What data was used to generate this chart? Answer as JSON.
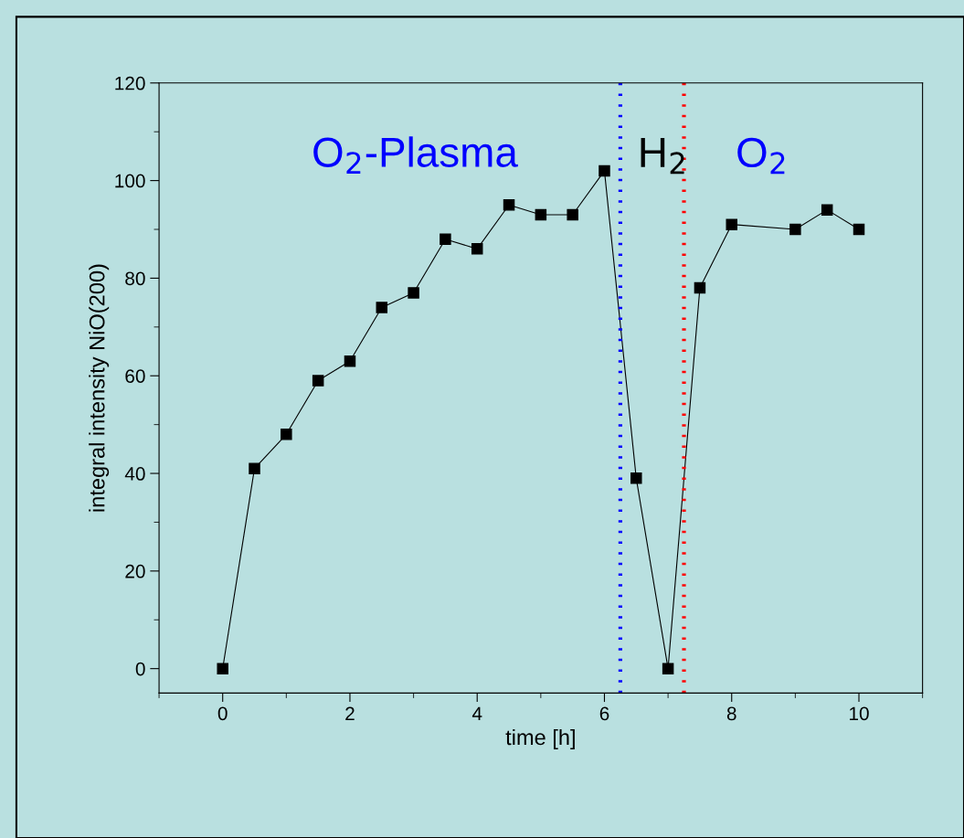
{
  "chart_data": {
    "type": "line",
    "xlabel": "time [h]",
    "ylabel": "integral intensity NiO(200)",
    "x": [
      0,
      0.5,
      1,
      1.5,
      2,
      2.5,
      3,
      3.5,
      4,
      4.5,
      5,
      5.5,
      6,
      6.5,
      7,
      7.5,
      8,
      9,
      9.5,
      10
    ],
    "series": [
      {
        "color": "#000000",
        "values": [
          0,
          41,
          48,
          59,
          63,
          74,
          77,
          88,
          86,
          95,
          93,
          93,
          102,
          39,
          0,
          78,
          91,
          90,
          94,
          90
        ]
      }
    ],
    "xlim": [
      -1,
      11
    ],
    "xticks": [
      0,
      2,
      4,
      6,
      8,
      10
    ],
    "ylim": [
      -5,
      120
    ],
    "yticks": [
      0,
      20,
      40,
      60,
      80,
      100,
      120
    ],
    "marker": "square",
    "line_style": "solid",
    "grid": false,
    "legend": false,
    "ref_lines": [
      {
        "axis": "x",
        "value": 6.25,
        "color": "#0000ff",
        "line_style": "dotted"
      },
      {
        "axis": "x",
        "value": 7.25,
        "color": "#ff0000",
        "line_style": "dotted"
      }
    ],
    "annotations": [
      "O$_{2}$-Plasma",
      "H$_{2}$",
      "O$_{2}$"
    ]
  }
}
